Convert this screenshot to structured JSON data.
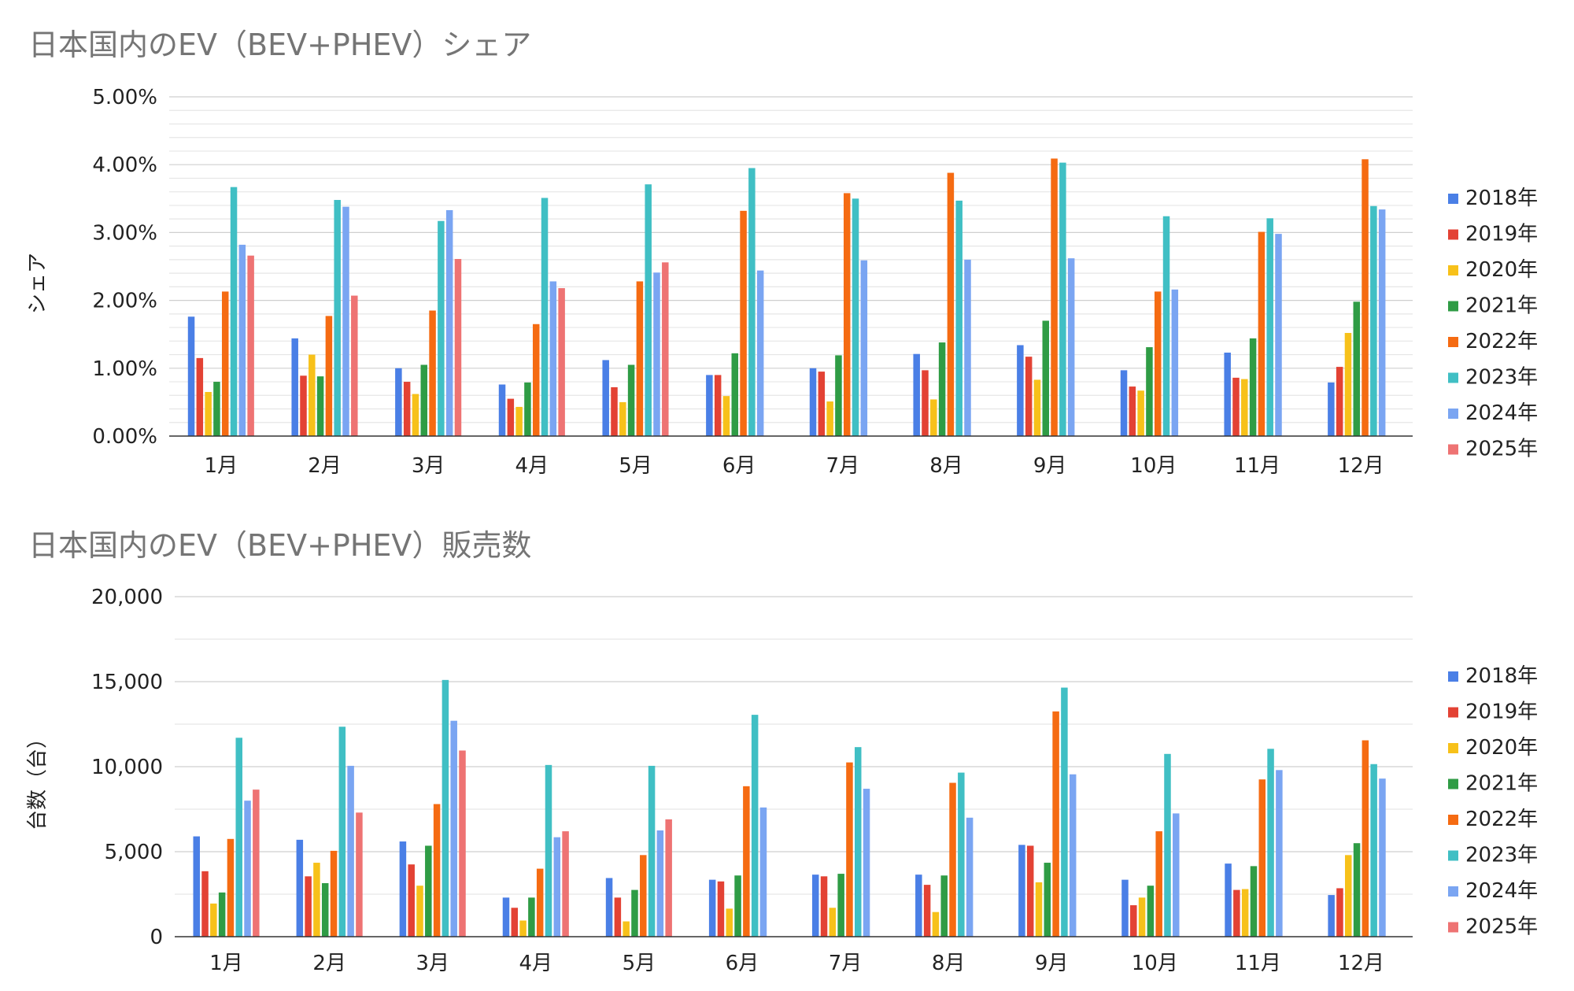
{
  "chart_data": [
    {
      "type": "bar",
      "title": "日本国内のEV（BEV+PHEV）シェア",
      "xlabel": "",
      "ylabel": "シェア",
      "ylim": [
        0,
        5
      ],
      "yticks": [
        "0.00%",
        "1.00%",
        "2.00%",
        "3.00%",
        "4.00%",
        "5.00%"
      ],
      "grid": true,
      "legend_position": "right",
      "categories": [
        "1月",
        "2月",
        "3月",
        "4月",
        "5月",
        "6月",
        "7月",
        "8月",
        "9月",
        "10月",
        "11月",
        "12月"
      ],
      "series": [
        {
          "name": "2018年",
          "color": "#4a7fe6",
          "values": [
            1.76,
            1.44,
            1.0,
            0.76,
            1.12,
            0.9,
            1.0,
            1.21,
            1.34,
            0.97,
            1.23,
            0.79
          ]
        },
        {
          "name": "2019年",
          "color": "#e34234",
          "values": [
            1.15,
            0.89,
            0.8,
            0.55,
            0.72,
            0.9,
            0.95,
            0.97,
            1.17,
            0.73,
            0.86,
            1.02
          ]
        },
        {
          "name": "2020年",
          "color": "#f7c11a",
          "values": [
            0.65,
            1.2,
            0.62,
            0.43,
            0.5,
            0.59,
            0.51,
            0.54,
            0.83,
            0.67,
            0.84,
            1.52
          ]
        },
        {
          "name": "2021年",
          "color": "#2f9c45",
          "values": [
            0.8,
            0.88,
            1.05,
            0.79,
            1.05,
            1.22,
            1.19,
            1.38,
            1.7,
            1.31,
            1.44,
            1.98
          ]
        },
        {
          "name": "2022年",
          "color": "#f56b12",
          "values": [
            2.13,
            1.77,
            1.85,
            1.65,
            2.28,
            3.32,
            3.58,
            3.88,
            4.09,
            2.13,
            3.01,
            4.08
          ]
        },
        {
          "name": "2023年",
          "color": "#40bfc4",
          "values": [
            3.67,
            3.48,
            3.17,
            3.51,
            3.71,
            3.95,
            3.5,
            3.47,
            4.03,
            3.24,
            3.21,
            3.39
          ]
        },
        {
          "name": "2024年",
          "color": "#7aa5f2",
          "values": [
            2.82,
            3.38,
            3.33,
            2.28,
            2.41,
            2.44,
            2.59,
            2.6,
            2.62,
            2.16,
            2.98,
            3.34
          ]
        },
        {
          "name": "2025年",
          "color": "#ee7373",
          "values": [
            2.66,
            2.07,
            2.61,
            2.18,
            2.56,
            null,
            null,
            null,
            null,
            null,
            null,
            null
          ]
        }
      ]
    },
    {
      "type": "bar",
      "title": "日本国内のEV（BEV+PHEV）販売数",
      "xlabel": "",
      "ylabel": "台数（台）",
      "ylim": [
        0,
        20000
      ],
      "yticks": [
        "0",
        "5,000",
        "10,000",
        "15,000",
        "20,000"
      ],
      "grid": true,
      "legend_position": "right",
      "categories": [
        "1月",
        "2月",
        "3月",
        "4月",
        "5月",
        "6月",
        "7月",
        "8月",
        "9月",
        "10月",
        "11月",
        "12月"
      ],
      "series": [
        {
          "name": "2018年",
          "color": "#4a7fe6",
          "values": [
            5900,
            5700,
            5600,
            2300,
            3450,
            3350,
            3650,
            3650,
            5400,
            3350,
            4300,
            2450
          ]
        },
        {
          "name": "2019年",
          "color": "#e34234",
          "values": [
            3850,
            3550,
            4250,
            1700,
            2300,
            3250,
            3550,
            3050,
            5350,
            1850,
            2750,
            2850
          ]
        },
        {
          "name": "2020年",
          "color": "#f7c11a",
          "values": [
            1950,
            4350,
            3000,
            950,
            900,
            1650,
            1700,
            1450,
            3200,
            2300,
            2800,
            4800
          ]
        },
        {
          "name": "2021年",
          "color": "#2f9c45",
          "values": [
            2600,
            3150,
            5350,
            2300,
            2750,
            3600,
            3700,
            3600,
            4350,
            3000,
            4150,
            5500
          ]
        },
        {
          "name": "2022年",
          "color": "#f56b12",
          "values": [
            5750,
            5050,
            7800,
            4000,
            4800,
            8850,
            10250,
            9050,
            13250,
            6200,
            9250,
            11550
          ]
        },
        {
          "name": "2023年",
          "color": "#40bfc4",
          "values": [
            11700,
            12350,
            15100,
            10100,
            10050,
            13050,
            11150,
            9650,
            14650,
            10750,
            11050,
            10150
          ]
        },
        {
          "name": "2024年",
          "color": "#7aa5f2",
          "values": [
            8000,
            10050,
            12700,
            5850,
            6250,
            7600,
            8700,
            7000,
            9550,
            7250,
            9800,
            9300
          ]
        },
        {
          "name": "2025年",
          "color": "#ee7373",
          "values": [
            8650,
            7300,
            10950,
            6200,
            6900,
            null,
            null,
            null,
            null,
            null,
            null,
            null
          ]
        }
      ]
    }
  ]
}
